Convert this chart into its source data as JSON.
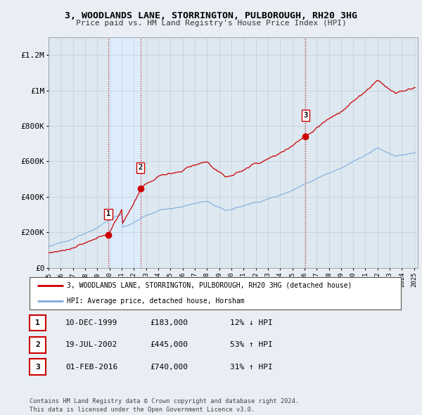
{
  "title": "3, WOODLANDS LANE, STORRINGTON, PULBOROUGH, RH20 3HG",
  "subtitle": "Price paid vs. HM Land Registry's House Price Index (HPI)",
  "sale_dates_num": [
    1999.917,
    2002.542,
    2016.083
  ],
  "sale_prices": [
    183000,
    445000,
    740000
  ],
  "sale_labels": [
    "1",
    "2",
    "3"
  ],
  "transaction_info": [
    {
      "label": "1",
      "date": "10-DEC-1999",
      "price": "£183,000",
      "change": "12% ↓ HPI"
    },
    {
      "label": "2",
      "date": "19-JUL-2002",
      "price": "£445,000",
      "change": "53% ↑ HPI"
    },
    {
      "label": "3",
      "date": "01-FEB-2016",
      "price": "£740,000",
      "change": "31% ↑ HPI"
    }
  ],
  "legend_house": "3, WOODLANDS LANE, STORRINGTON, PULBOROUGH, RH20 3HG (detached house)",
  "legend_hpi": "HPI: Average price, detached house, Horsham",
  "footer": "Contains HM Land Registry data © Crown copyright and database right 2024.\nThis data is licensed under the Open Government Licence v3.0.",
  "house_line_color": "#cc0000",
  "hpi_line_color": "#7aaadd",
  "shade_color": "#ddeeff",
  "vline_color": "#cc0000",
  "background_color": "#e8eef4",
  "plot_bg_color": "#dde8f0",
  "ylim": [
    0,
    1300000
  ],
  "yticks": [
    0,
    200000,
    400000,
    600000,
    800000,
    1000000,
    1200000
  ],
  "ytick_labels": [
    "£0",
    "£200K",
    "£400K",
    "£600K",
    "£800K",
    "£1M",
    "£1.2M"
  ],
  "year_start": 1995,
  "year_end": 2025
}
